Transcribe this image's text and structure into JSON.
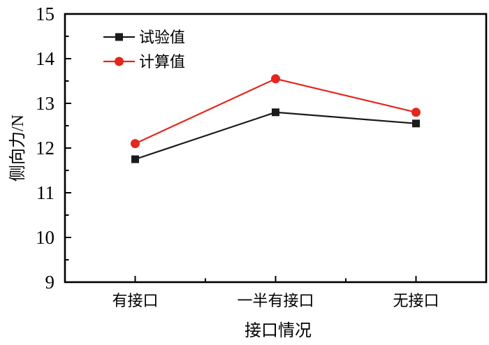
{
  "chart_data": {
    "type": "line",
    "title": "",
    "xlabel": "接口情况",
    "ylabel": "侧向力/N",
    "categories": [
      "有接口",
      "一半有接口",
      "无接口"
    ],
    "series": [
      {
        "name": "试验值",
        "color": "#1a1a1a",
        "marker": "square",
        "values": [
          11.75,
          12.8,
          12.55
        ]
      },
      {
        "name": "计算值",
        "color": "#e4261d",
        "marker": "circle",
        "values": [
          12.1,
          13.55,
          12.8
        ]
      }
    ],
    "ylim": [
      9,
      15
    ],
    "y_major_ticks": [
      9,
      10,
      11,
      12,
      13,
      14,
      15
    ],
    "y_minor_step": 0.5,
    "x_minor_ticks_between_categories": true,
    "legend_position": "top-left",
    "grid": false,
    "axis_color": "#000000",
    "background_color": "#ffffff"
  }
}
